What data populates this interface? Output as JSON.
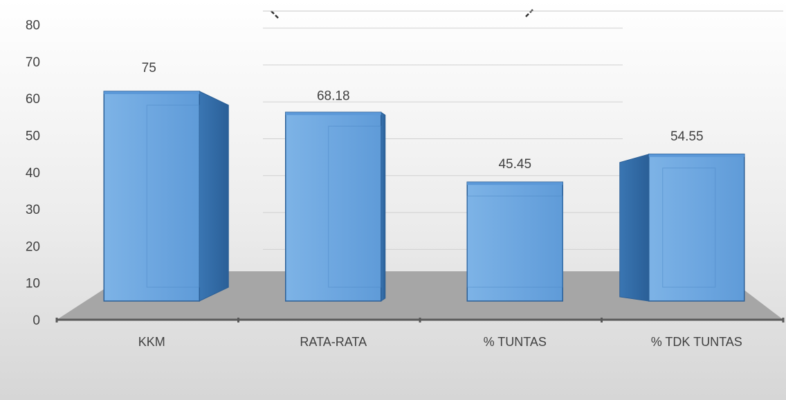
{
  "chart_data": {
    "type": "bar",
    "style": "3d-column",
    "categories": [
      "KKM",
      "RATA-RATA",
      "% TUNTAS",
      "% TDK TUNTAS"
    ],
    "values": [
      75,
      68.18,
      45.45,
      54.55
    ],
    "data_labels": [
      "75",
      "68.18",
      "45.45",
      "54.55"
    ],
    "title": "",
    "xlabel": "",
    "ylabel": "",
    "ylim": [
      0,
      80
    ],
    "yticks": [
      "0",
      "10",
      "20",
      "30",
      "40",
      "50",
      "60",
      "70",
      "80"
    ],
    "grid": true,
    "legend": "none",
    "colors": {
      "bar_front": "#6ea7e0",
      "bar_front_light": "#8cbdeb",
      "bar_top": "#5b98d8",
      "bar_side": "#2f6aa6",
      "bar_edge": "#2b5f96",
      "floor": "#a6a6a6",
      "background_top": "#ffffff",
      "background_bottom": "#d9d9d9",
      "axis": "#595959",
      "gridline": "#d0d0d0",
      "text": "#404040"
    }
  }
}
